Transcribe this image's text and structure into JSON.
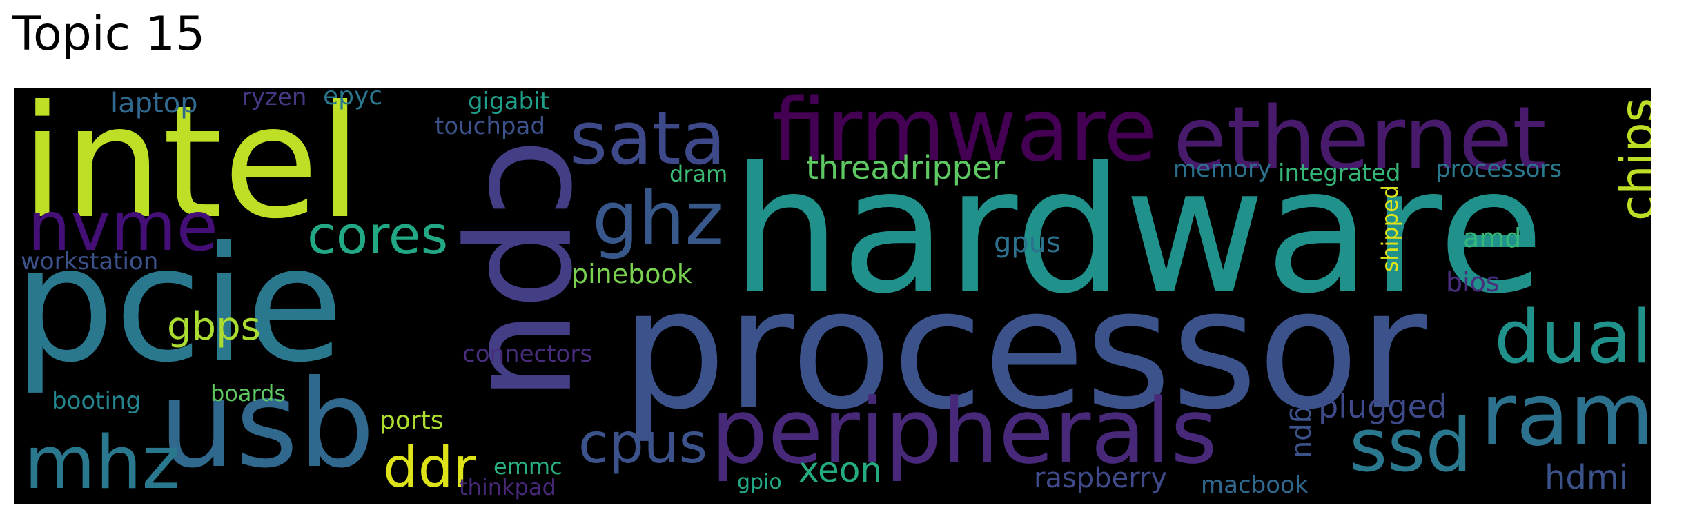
{
  "title": "Topic 15",
  "colors": {
    "page_background": "#ffffff",
    "cloud_background": "#000000"
  },
  "words": [
    {
      "text": "hardware",
      "color": "#21918c"
    },
    {
      "text": "processor",
      "color": "#3b528b"
    },
    {
      "text": "intel",
      "color": "#bddf26"
    },
    {
      "text": "pcie",
      "color": "#2a788e"
    },
    {
      "text": "cpu",
      "color": "#433e85"
    },
    {
      "text": "usb",
      "color": "#31688e"
    },
    {
      "text": "ethernet",
      "color": "#481a6c"
    },
    {
      "text": "firmware",
      "color": "#440154"
    },
    {
      "text": "peripherals",
      "color": "#482878"
    },
    {
      "text": "sata",
      "color": "#3e4989"
    },
    {
      "text": "ghz",
      "color": "#38588c"
    },
    {
      "text": "nvme",
      "color": "#440f76"
    },
    {
      "text": "cores",
      "color": "#22a884"
    },
    {
      "text": "ram",
      "color": "#2c728e"
    },
    {
      "text": "dual",
      "color": "#21918c"
    },
    {
      "text": "ssd",
      "color": "#2a788e"
    },
    {
      "text": "chips",
      "color": "#bddf26"
    },
    {
      "text": "mhz",
      "color": "#2a788e"
    },
    {
      "text": "ddr",
      "color": "#dde318"
    },
    {
      "text": "cpus",
      "color": "#3b528b"
    },
    {
      "text": "threadripper",
      "color": "#5ec962"
    },
    {
      "text": "gbps",
      "color": "#aadc32"
    },
    {
      "text": "xeon",
      "color": "#25ab82"
    },
    {
      "text": "plugged",
      "color": "#3e4a89"
    },
    {
      "text": "hdmi",
      "color": "#3b528b"
    },
    {
      "text": "laptop",
      "color": "#31688e"
    },
    {
      "text": "workstation",
      "color": "#3b528b"
    },
    {
      "text": "memory",
      "color": "#2c728e"
    },
    {
      "text": "integrated",
      "color": "#35b779"
    },
    {
      "text": "processors",
      "color": "#2a788e"
    },
    {
      "text": "pinebook",
      "color": "#7ad151"
    },
    {
      "text": "gpus",
      "color": "#2c728e"
    },
    {
      "text": "amd",
      "color": "#35b779"
    },
    {
      "text": "bios",
      "color": "#472d7b"
    },
    {
      "text": "gpu",
      "color": "#3b528b"
    },
    {
      "text": "raspberry",
      "color": "#3e4a89"
    },
    {
      "text": "shipped",
      "color": "#dde318"
    },
    {
      "text": "gigabit",
      "color": "#1f9e89"
    },
    {
      "text": "epyc",
      "color": "#2a788e"
    },
    {
      "text": "ryzen",
      "color": "#443983"
    },
    {
      "text": "touchpad",
      "color": "#3b528b"
    },
    {
      "text": "dram",
      "color": "#3bbb75"
    },
    {
      "text": "connectors",
      "color": "#472d7b"
    },
    {
      "text": "boards",
      "color": "#5ec962"
    },
    {
      "text": "booting",
      "color": "#25858e"
    },
    {
      "text": "ports",
      "color": "#addc30"
    },
    {
      "text": "emmc",
      "color": "#2ab07f"
    },
    {
      "text": "thinkpad",
      "color": "#482878"
    },
    {
      "text": "gpio",
      "color": "#22a884"
    },
    {
      "text": "macbook",
      "color": "#31688e"
    }
  ]
}
